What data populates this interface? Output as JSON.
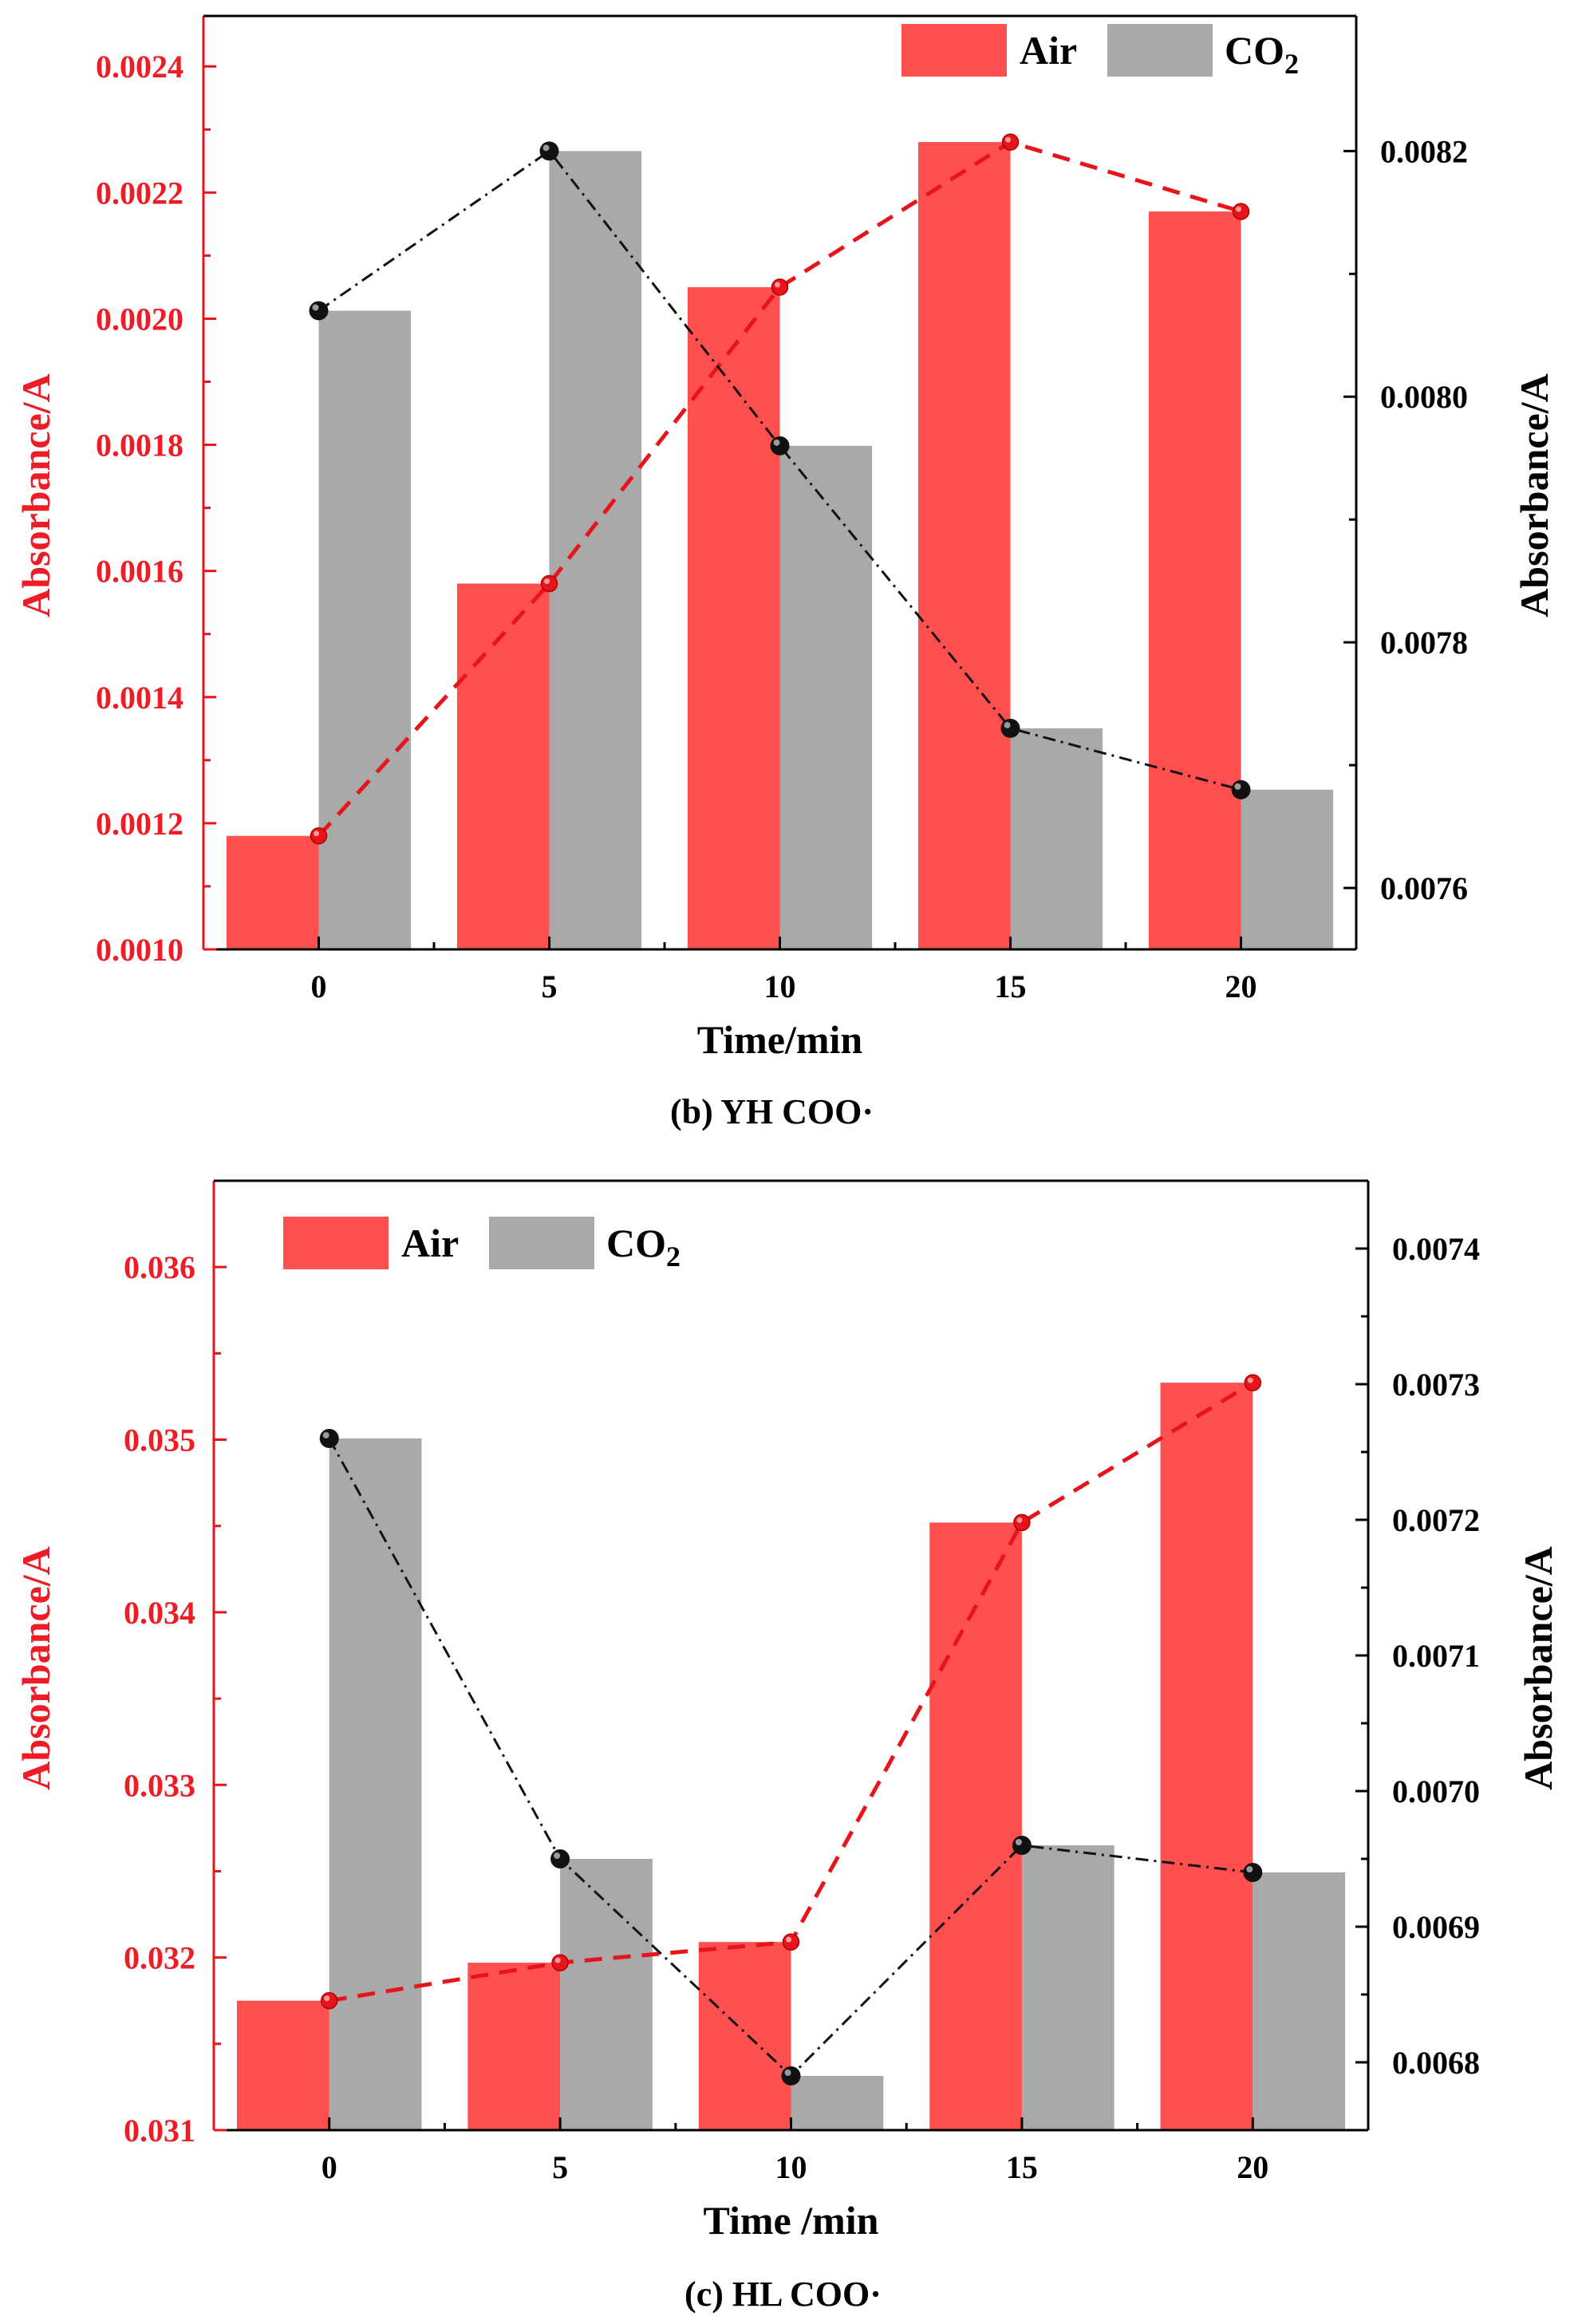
{
  "chart_data": [
    {
      "type": "bar",
      "panel_caption": "(b) YH  COO·",
      "xlabel": "Time/min",
      "ylabel_left": "Absorbance/A",
      "ylabel_right": "Absorbance/A",
      "categories": [
        "0",
        "5",
        "10",
        "15",
        "20"
      ],
      "ylim_left": [
        0.001,
        0.00248
      ],
      "ylim_right": [
        0.00755,
        0.00831
      ],
      "yticks_left": [
        "0.0010",
        "0.0012",
        "0.0014",
        "0.0016",
        "0.0018",
        "0.0020",
        "0.0022",
        "0.0024"
      ],
      "yticks_right": [
        "0.0076",
        "0.0078",
        "0.0080",
        "0.0082"
      ],
      "legend": {
        "air_label": "Air",
        "co2_label": "CO",
        "co2_sub": "2",
        "position": "top-right"
      },
      "series": [
        {
          "name": "Air",
          "axis": "left",
          "color": "#ff4f4f",
          "values": [
            0.00118,
            0.00158,
            0.00205,
            0.00228,
            0.00217
          ]
        },
        {
          "name": "CO2",
          "axis": "right",
          "color": "#a9a9a9",
          "values": [
            0.00807,
            0.0082,
            0.00796,
            0.00773,
            0.00768
          ]
        }
      ]
    },
    {
      "type": "bar",
      "panel_caption": "(c) HL COO·",
      "xlabel": "Time /min",
      "ylabel_left": "Absorbance/A",
      "ylabel_right": "Absorbance/A",
      "categories": [
        "0",
        "5",
        "10",
        "15",
        "20"
      ],
      "ylim_left": [
        0.031,
        0.0365
      ],
      "ylim_right": [
        0.00675,
        0.00745
      ],
      "yticks_left": [
        "0.031",
        "0.032",
        "0.033",
        "0.034",
        "0.035",
        "0.036"
      ],
      "yticks_right": [
        "0.0068",
        "0.0069",
        "0.0070",
        "0.0071",
        "0.0072",
        "0.0073",
        "0.0074"
      ],
      "legend": {
        "air_label": "Air",
        "co2_label": "CO",
        "co2_sub": "2",
        "position": "top-left"
      },
      "series": [
        {
          "name": "Air",
          "axis": "left",
          "color": "#ff4f4f",
          "values": [
            0.03175,
            0.03197,
            0.03209,
            0.03452,
            0.03533
          ]
        },
        {
          "name": "CO2",
          "axis": "right",
          "color": "#a9a9a9",
          "values": [
            0.00726,
            0.00695,
            0.00679,
            0.00696,
            0.00694
          ]
        }
      ]
    }
  ]
}
